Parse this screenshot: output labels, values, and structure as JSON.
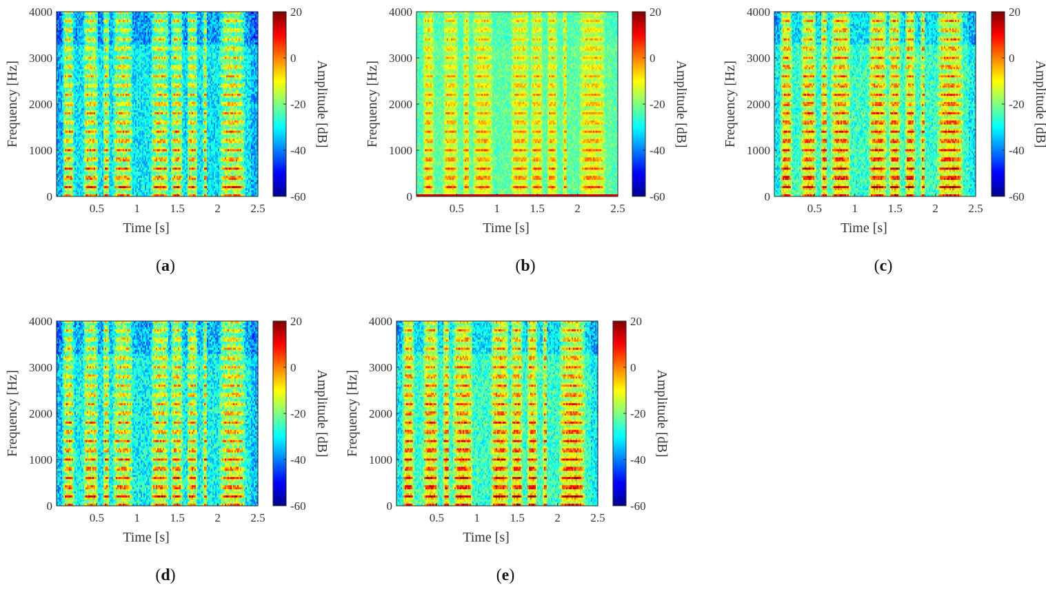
{
  "figure": {
    "panels": [
      {
        "caption_letter": "a",
        "caption_left": "(",
        "caption_right": ")",
        "variant": "clean"
      },
      {
        "caption_letter": "b",
        "caption_left": "(",
        "caption_right": ")",
        "variant": "noisy"
      },
      {
        "caption_letter": "c",
        "caption_left": "(",
        "caption_right": ")",
        "variant": "enhanced-bright"
      },
      {
        "caption_letter": "d",
        "caption_left": "(",
        "caption_right": ")",
        "variant": "enhanced"
      },
      {
        "caption_letter": "e",
        "caption_left": "(",
        "caption_right": ")",
        "variant": "enhanced-bright"
      }
    ]
  },
  "chart_data": {
    "type": "heatmap",
    "subtype": "spectrogram",
    "xlabel": "Time [s]",
    "ylabel": "Frequency [Hz]",
    "colorbar_label": "Amplitude [dB]",
    "colormap": "jet",
    "xlim": [
      0,
      2.5
    ],
    "ylim": [
      0,
      4000
    ],
    "clim": [
      -60,
      20
    ],
    "x_ticks": [
      0.5,
      1,
      1.5,
      2,
      2.5
    ],
    "x_tick_labels": [
      "0.5",
      "1",
      "1.5",
      "2",
      "2.5"
    ],
    "y_ticks": [
      0,
      1000,
      2000,
      3000,
      4000
    ],
    "y_tick_labels": [
      "0",
      "1000",
      "2000",
      "3000",
      "4000"
    ],
    "colorbar_ticks": [
      20,
      0,
      -20,
      -40,
      -60
    ],
    "colorbar_tick_labels": [
      "20",
      "0",
      "-20",
      "-40",
      "-60"
    ],
    "speech_segments_s": [
      [
        0.08,
        0.22
      ],
      [
        0.33,
        0.52
      ],
      [
        0.58,
        0.66
      ],
      [
        0.7,
        0.95
      ],
      [
        1.17,
        1.4
      ],
      [
        1.42,
        1.57
      ],
      [
        1.62,
        1.75
      ],
      [
        1.82,
        1.87
      ],
      [
        2.02,
        2.35
      ]
    ],
    "pitch_hz": 200
  }
}
